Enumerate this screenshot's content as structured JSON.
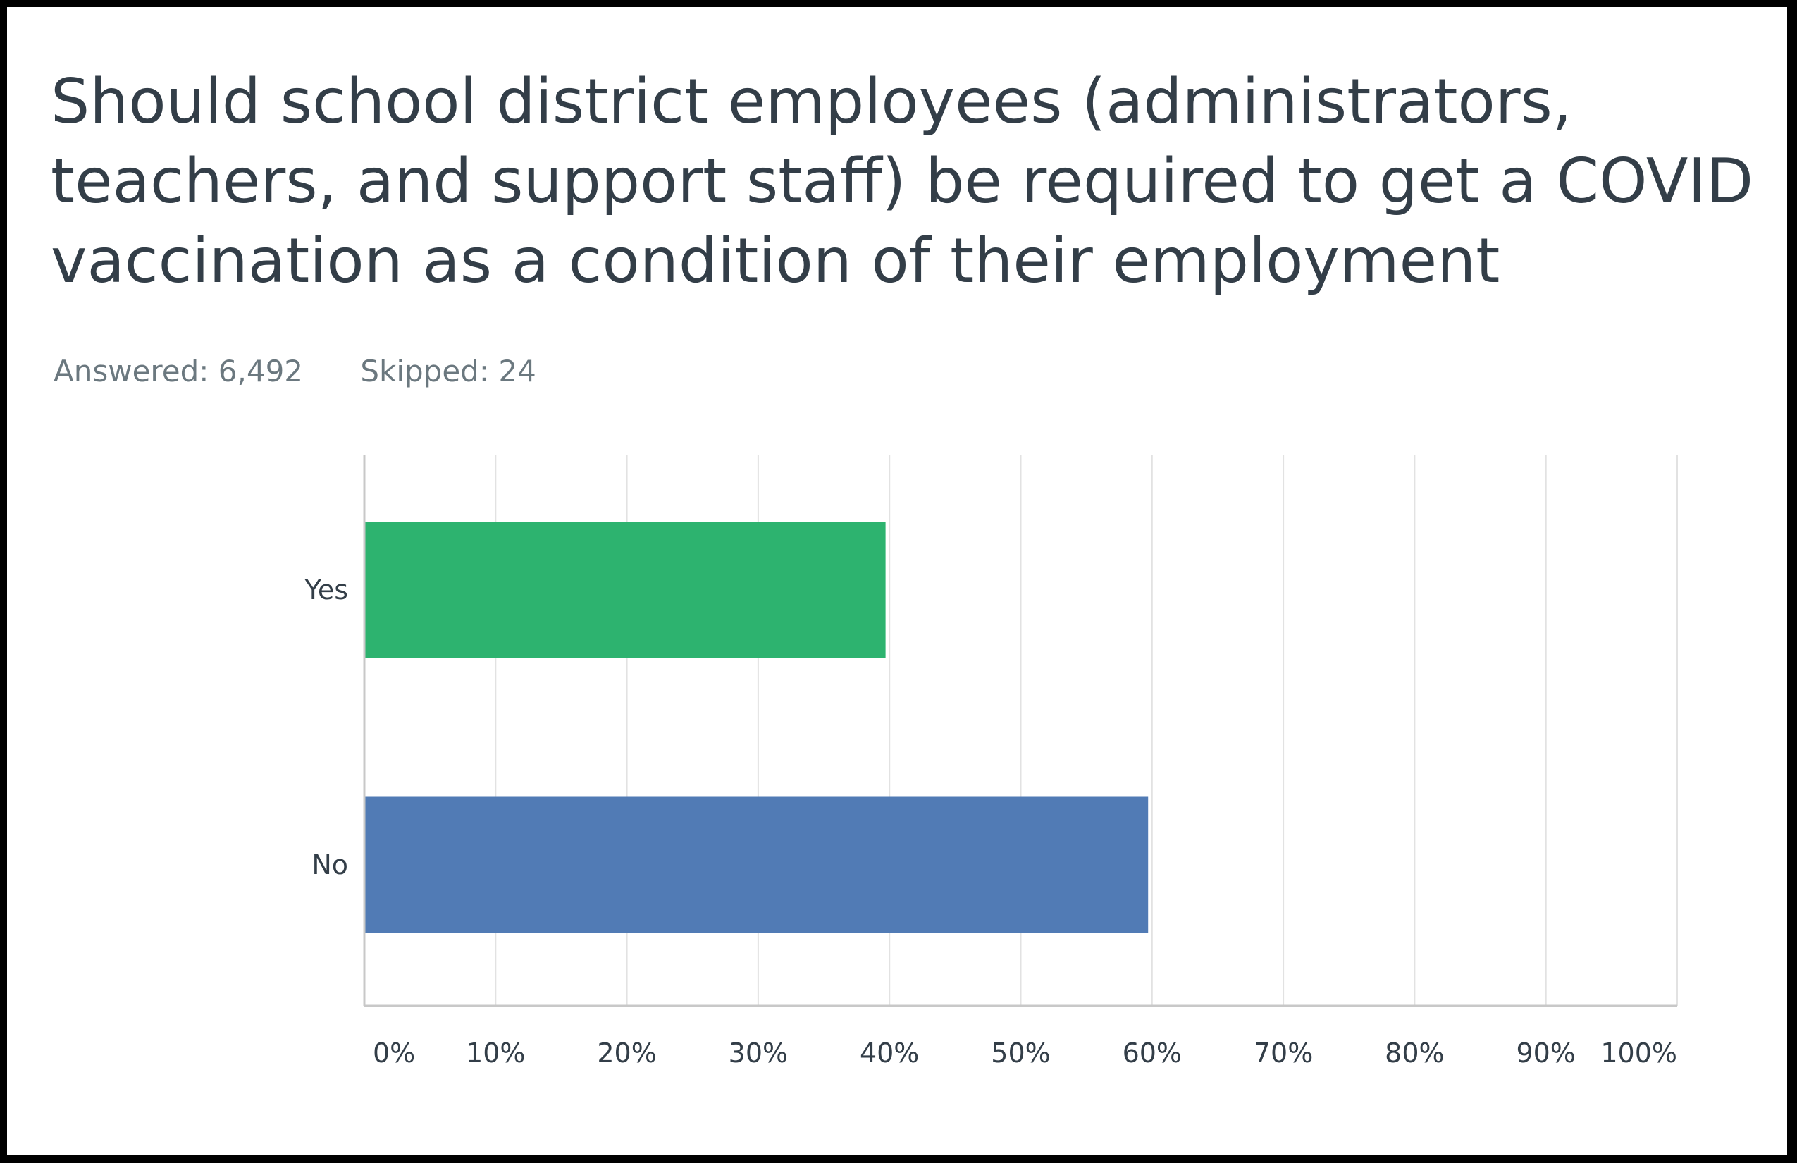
{
  "question": {
    "title": "Should school district employees (administrators, teachers, and support staff) be required to get a COVID vaccination as a condition of their employment",
    "answered": "Answered: 6,492",
    "skipped": "Skipped: 24"
  },
  "chart_data": {
    "type": "bar",
    "orientation": "horizontal",
    "categories": [
      "Yes",
      "No"
    ],
    "values": [
      39.7,
      59.7
    ],
    "colors": [
      "#2db36f",
      "#517bb5"
    ],
    "xlim": [
      0,
      100
    ],
    "xticks": [
      "0%",
      "10%",
      "20%",
      "30%",
      "40%",
      "50%",
      "60%",
      "70%",
      "80%",
      "90%",
      "100%"
    ],
    "grid": true,
    "legend": "none"
  },
  "colors": {
    "title": "#333e48",
    "stats": "#6b787f",
    "grid": "#e2e2e2",
    "axis": "#c8c8c8"
  }
}
